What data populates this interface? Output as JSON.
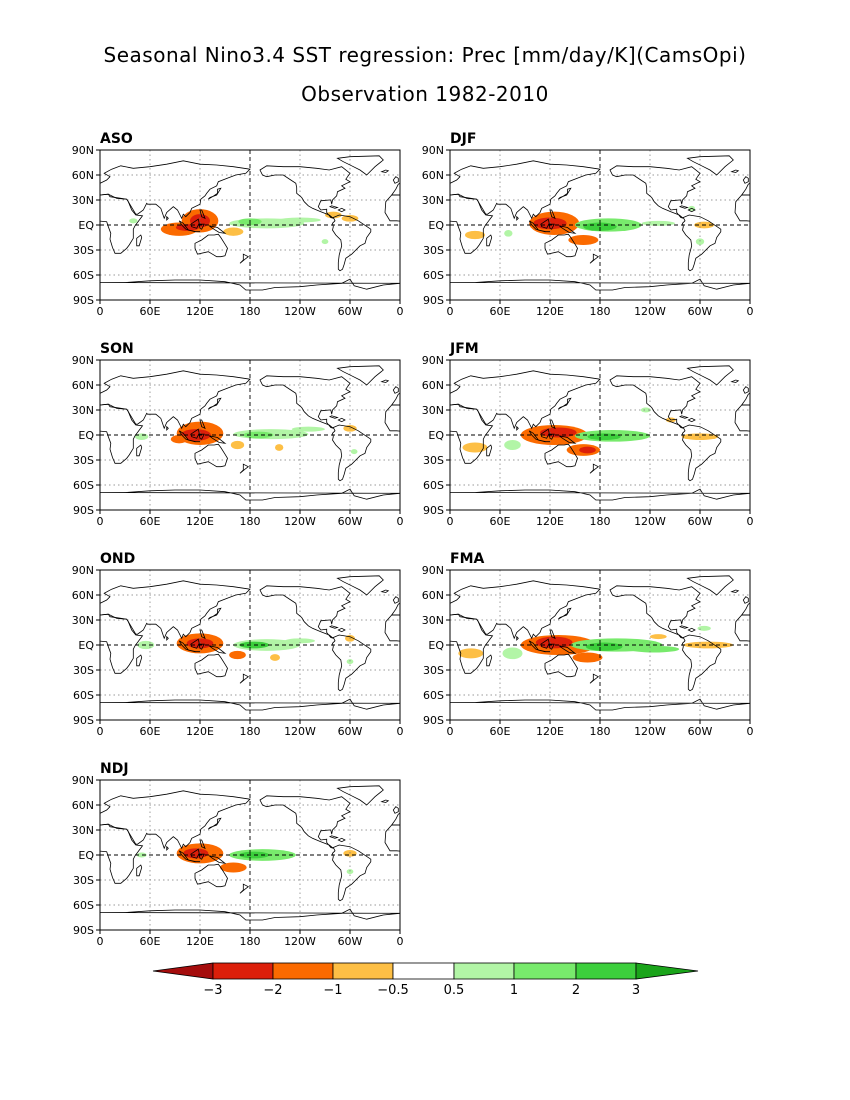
{
  "title_line1": "Seasonal Nino3.4 SST regression: Prec [mm/day/K](CamsOpi)",
  "title_line2": "Observation 1982-2010",
  "colors": {
    "neg3": "#a50d0d",
    "neg2": "#dc1f0a",
    "neg1": "#fb6a00",
    "neg05": "#fdbf45",
    "pos05": "#b2f5a6",
    "pos1": "#78ea6c",
    "pos2": "#3ccf3c",
    "pos3": "#1aa41a"
  },
  "chart_data": {
    "type": "map",
    "projection": "equirectangular",
    "lon_range": [
      0,
      360
    ],
    "lat_range": [
      -90,
      90
    ],
    "lat_ticks": [
      "90N",
      "60N",
      "30N",
      "EQ",
      "30S",
      "60S",
      "90S"
    ],
    "lon_ticks": [
      "0",
      "60E",
      "120E",
      "180",
      "120W",
      "60W",
      "0"
    ],
    "colorbar": {
      "labels": [
        "-3",
        "-2",
        "-1",
        "-0.5",
        "0.5",
        "1",
        "2",
        "3"
      ],
      "levels": [
        -3,
        -2,
        -1,
        -0.5,
        0.5,
        1,
        2,
        3
      ]
    },
    "panels": [
      {
        "label": "ASO",
        "blobs": [
          {
            "lon": 95,
            "lat": -5,
            "rx": 22,
            "ry": 8,
            "v": -1.0
          },
          {
            "lon": 120,
            "lat": 5,
            "rx": 22,
            "ry": 14,
            "v": -1.2
          },
          {
            "lon": 120,
            "lat": 5,
            "rx": 12,
            "ry": 8,
            "v": -2.2
          },
          {
            "lon": 105,
            "lat": -3,
            "rx": 14,
            "ry": 4,
            "v": -2.0
          },
          {
            "lon": 160,
            "lat": -8,
            "rx": 12,
            "ry": 5,
            "v": -0.6
          },
          {
            "lon": 200,
            "lat": 2,
            "rx": 45,
            "ry": 6,
            "v": 0.7
          },
          {
            "lon": 180,
            "lat": 4,
            "rx": 14,
            "ry": 4,
            "v": 1.2
          },
          {
            "lon": 240,
            "lat": 6,
            "rx": 25,
            "ry": 3,
            "v": 0.6
          },
          {
            "lon": 280,
            "lat": 12,
            "rx": 10,
            "ry": 4,
            "v": -0.7
          },
          {
            "lon": 300,
            "lat": 8,
            "rx": 10,
            "ry": 4,
            "v": -0.6
          },
          {
            "lon": 40,
            "lat": 5,
            "rx": 5,
            "ry": 3,
            "v": 0.6
          },
          {
            "lon": 270,
            "lat": -20,
            "rx": 4,
            "ry": 3,
            "v": 0.6
          }
        ]
      },
      {
        "label": "DJF",
        "blobs": [
          {
            "lon": 125,
            "lat": 2,
            "rx": 30,
            "ry": 14,
            "v": -1.0
          },
          {
            "lon": 120,
            "lat": 2,
            "rx": 20,
            "ry": 7,
            "v": -2.0
          },
          {
            "lon": 160,
            "lat": -18,
            "rx": 18,
            "ry": 6,
            "v": -1.0
          },
          {
            "lon": 30,
            "lat": -12,
            "rx": 12,
            "ry": 5,
            "v": -0.7
          },
          {
            "lon": 190,
            "lat": 0,
            "rx": 40,
            "ry": 8,
            "v": 1.0
          },
          {
            "lon": 180,
            "lat": -2,
            "rx": 20,
            "ry": 5,
            "v": 2.2
          },
          {
            "lon": 250,
            "lat": 2,
            "rx": 20,
            "ry": 3,
            "v": 0.7
          },
          {
            "lon": 305,
            "lat": 0,
            "rx": 12,
            "ry": 4,
            "v": -0.7
          },
          {
            "lon": 70,
            "lat": -10,
            "rx": 5,
            "ry": 4,
            "v": 0.6
          },
          {
            "lon": 290,
            "lat": 20,
            "rx": 4,
            "ry": 3,
            "v": 0.6
          },
          {
            "lon": 300,
            "lat": -20,
            "rx": 5,
            "ry": 4,
            "v": 0.6
          }
        ]
      },
      {
        "label": "SON",
        "blobs": [
          {
            "lon": 120,
            "lat": 2,
            "rx": 28,
            "ry": 14,
            "v": -1.0
          },
          {
            "lon": 115,
            "lat": 0,
            "rx": 18,
            "ry": 7,
            "v": -2.1
          },
          {
            "lon": 95,
            "lat": -5,
            "rx": 10,
            "ry": 5,
            "v": -1.2
          },
          {
            "lon": 165,
            "lat": -12,
            "rx": 8,
            "ry": 5,
            "v": -0.7
          },
          {
            "lon": 205,
            "lat": 1,
            "rx": 45,
            "ry": 6,
            "v": 0.8
          },
          {
            "lon": 190,
            "lat": 0,
            "rx": 18,
            "ry": 4,
            "v": 1.3
          },
          {
            "lon": 250,
            "lat": 7,
            "rx": 20,
            "ry": 3,
            "v": 0.6
          },
          {
            "lon": 300,
            "lat": 8,
            "rx": 8,
            "ry": 4,
            "v": -0.6
          },
          {
            "lon": 50,
            "lat": -2,
            "rx": 8,
            "ry": 4,
            "v": 0.6
          },
          {
            "lon": 215,
            "lat": -15,
            "rx": 5,
            "ry": 4,
            "v": -0.6
          },
          {
            "lon": 305,
            "lat": -20,
            "rx": 4,
            "ry": 3,
            "v": 0.6
          }
        ]
      },
      {
        "label": "JFM",
        "blobs": [
          {
            "lon": 125,
            "lat": 0,
            "rx": 40,
            "ry": 12,
            "v": -1.0
          },
          {
            "lon": 130,
            "lat": 3,
            "rx": 22,
            "ry": 6,
            "v": -2.1
          },
          {
            "lon": 160,
            "lat": -18,
            "rx": 20,
            "ry": 7,
            "v": -1.3
          },
          {
            "lon": 165,
            "lat": -18,
            "rx": 10,
            "ry": 4,
            "v": -2.0
          },
          {
            "lon": 30,
            "lat": -15,
            "rx": 15,
            "ry": 6,
            "v": -0.7
          },
          {
            "lon": 75,
            "lat": -12,
            "rx": 10,
            "ry": 6,
            "v": 0.6
          },
          {
            "lon": 195,
            "lat": -1,
            "rx": 45,
            "ry": 7,
            "v": 1.0
          },
          {
            "lon": 185,
            "lat": -2,
            "rx": 20,
            "ry": 4,
            "v": 2.2
          },
          {
            "lon": 300,
            "lat": -2,
            "rx": 22,
            "ry": 4,
            "v": -0.8
          },
          {
            "lon": 265,
            "lat": 18,
            "rx": 6,
            "ry": 3,
            "v": -0.6
          },
          {
            "lon": 235,
            "lat": 30,
            "rx": 6,
            "ry": 3,
            "v": 0.6
          }
        ]
      },
      {
        "label": "OND",
        "blobs": [
          {
            "lon": 120,
            "lat": 2,
            "rx": 28,
            "ry": 12,
            "v": -1.0
          },
          {
            "lon": 120,
            "lat": 2,
            "rx": 16,
            "ry": 6,
            "v": -2.0
          },
          {
            "lon": 165,
            "lat": -12,
            "rx": 10,
            "ry": 5,
            "v": -1.0
          },
          {
            "lon": 200,
            "lat": 0,
            "rx": 40,
            "ry": 7,
            "v": 0.9
          },
          {
            "lon": 185,
            "lat": 0,
            "rx": 18,
            "ry": 4,
            "v": 2.0
          },
          {
            "lon": 240,
            "lat": 5,
            "rx": 18,
            "ry": 3,
            "v": 0.6
          },
          {
            "lon": 210,
            "lat": -15,
            "rx": 6,
            "ry": 4,
            "v": -0.7
          },
          {
            "lon": 55,
            "lat": 0,
            "rx": 10,
            "ry": 5,
            "v": 0.6
          },
          {
            "lon": 300,
            "lat": 8,
            "rx": 6,
            "ry": 4,
            "v": -0.6
          },
          {
            "lon": 300,
            "lat": -20,
            "rx": 4,
            "ry": 3,
            "v": 0.6
          }
        ]
      },
      {
        "label": "FMA",
        "blobs": [
          {
            "lon": 130,
            "lat": 0,
            "rx": 45,
            "ry": 12,
            "v": -1.0
          },
          {
            "lon": 125,
            "lat": 3,
            "rx": 22,
            "ry": 7,
            "v": -2.2
          },
          {
            "lon": 165,
            "lat": -15,
            "rx": 18,
            "ry": 6,
            "v": -1.2
          },
          {
            "lon": 25,
            "lat": -10,
            "rx": 15,
            "ry": 6,
            "v": -0.7
          },
          {
            "lon": 75,
            "lat": -10,
            "rx": 12,
            "ry": 7,
            "v": 0.7
          },
          {
            "lon": 200,
            "lat": 0,
            "rx": 55,
            "ry": 8,
            "v": 1.0
          },
          {
            "lon": 185,
            "lat": -2,
            "rx": 22,
            "ry": 5,
            "v": 2.3
          },
          {
            "lon": 245,
            "lat": -5,
            "rx": 30,
            "ry": 4,
            "v": 1.0
          },
          {
            "lon": 310,
            "lat": 0,
            "rx": 30,
            "ry": 4,
            "v": -0.8
          },
          {
            "lon": 250,
            "lat": 10,
            "rx": 10,
            "ry": 3,
            "v": -0.6
          },
          {
            "lon": 305,
            "lat": 20,
            "rx": 8,
            "ry": 3,
            "v": 0.6
          }
        ]
      },
      {
        "label": "NDJ",
        "blobs": [
          {
            "lon": 120,
            "lat": 2,
            "rx": 28,
            "ry": 12,
            "v": -1.0
          },
          {
            "lon": 115,
            "lat": 2,
            "rx": 15,
            "ry": 6,
            "v": -2.0
          },
          {
            "lon": 160,
            "lat": -15,
            "rx": 16,
            "ry": 6,
            "v": -1.0
          },
          {
            "lon": 195,
            "lat": 0,
            "rx": 40,
            "ry": 7,
            "v": 1.0
          },
          {
            "lon": 185,
            "lat": 0,
            "rx": 18,
            "ry": 4,
            "v": 2.1
          },
          {
            "lon": 300,
            "lat": 2,
            "rx": 8,
            "ry": 4,
            "v": -0.6
          },
          {
            "lon": 50,
            "lat": 0,
            "rx": 6,
            "ry": 3,
            "v": 0.6
          },
          {
            "lon": 300,
            "lat": -20,
            "rx": 4,
            "ry": 3,
            "v": 0.6
          }
        ]
      }
    ]
  }
}
